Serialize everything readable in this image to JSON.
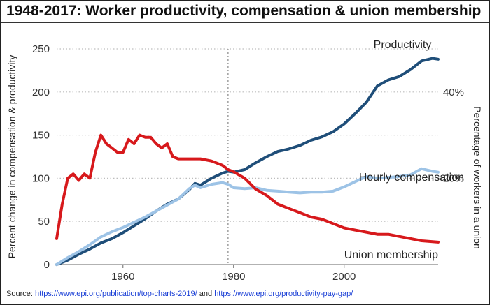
{
  "title": "1948-2017: Worker productivity, compensation & union membership",
  "source": {
    "prefix": "Source: ",
    "link1": "https://www.epi.org/publication/top-charts-2019/",
    "middle": " and ",
    "link2": "https://www.epi.org/productivity-pay-gap/"
  },
  "chart_data": {
    "type": "line",
    "title": "1948-2017: Worker productivity, compensation & union membership",
    "ylabel": "Percent change in compensation & productivity",
    "y2label": "Percentage of workers in a union",
    "xlim": [
      1948,
      2017
    ],
    "ylim": [
      0,
      250
    ],
    "y2lim": [
      0,
      50
    ],
    "x_ticks": [
      1960,
      1980,
      2000
    ],
    "x_tick_labels": [
      "1960",
      "1980",
      "2000"
    ],
    "y_ticks": [
      0,
      50,
      100,
      150,
      200,
      250
    ],
    "y_tick_labels": [
      "0",
      "50",
      "100",
      "150",
      "200",
      "250"
    ],
    "y2_ticks": [
      20,
      40
    ],
    "y2_tick_labels": [
      "20%",
      "40%"
    ],
    "reference_line_x": 1979,
    "grid": "horizontal dotted",
    "series": [
      {
        "name": "Productivity",
        "axis": "left",
        "color": "#1f4e79",
        "x": [
          1948,
          1950,
          1952,
          1954,
          1956,
          1958,
          1960,
          1962,
          1964,
          1966,
          1968,
          1970,
          1972,
          1973,
          1974,
          1976,
          1978,
          1979,
          1980,
          1982,
          1984,
          1986,
          1988,
          1990,
          1992,
          1994,
          1996,
          1998,
          2000,
          2002,
          2004,
          2006,
          2008,
          2010,
          2012,
          2014,
          2016,
          2017
        ],
        "values": [
          0,
          5,
          12,
          18,
          25,
          30,
          37,
          45,
          53,
          62,
          70,
          76,
          87,
          94,
          92,
          100,
          106,
          108,
          107,
          110,
          118,
          125,
          131,
          134,
          138,
          144,
          148,
          154,
          163,
          175,
          188,
          207,
          214,
          218,
          226,
          236,
          239,
          238
        ]
      },
      {
        "name": "Hourly compensation",
        "axis": "left",
        "color": "#9dc3e6",
        "x": [
          1948,
          1950,
          1952,
          1954,
          1956,
          1958,
          1960,
          1962,
          1964,
          1966,
          1968,
          1970,
          1972,
          1973,
          1974,
          1976,
          1978,
          1979,
          1980,
          1982,
          1984,
          1986,
          1988,
          1990,
          1992,
          1994,
          1996,
          1998,
          2000,
          2002,
          2004,
          2006,
          2008,
          2010,
          2012,
          2014,
          2016,
          2017
        ],
        "values": [
          0,
          8,
          15,
          23,
          32,
          38,
          43,
          49,
          55,
          62,
          69,
          76,
          88,
          92,
          89,
          93,
          95,
          93,
          89,
          88,
          89,
          86,
          85,
          84,
          83,
          84,
          84,
          85,
          90,
          96,
          102,
          100,
          101,
          102,
          104,
          111,
          108,
          107
        ]
      },
      {
        "name": "Union membership",
        "axis": "right",
        "color": "#d7191c",
        "x": [
          1948,
          1949,
          1950,
          1951,
          1952,
          1953,
          1954,
          1955,
          1956,
          1957,
          1958,
          1959,
          1960,
          1961,
          1962,
          1963,
          1964,
          1965,
          1966,
          1967,
          1968,
          1969,
          1970,
          1972,
          1974,
          1976,
          1978,
          1979,
          1980,
          1982,
          1984,
          1986,
          1988,
          1990,
          1992,
          1994,
          1996,
          1998,
          2000,
          2002,
          2004,
          2006,
          2008,
          2010,
          2012,
          2014,
          2016,
          2017
        ],
        "values": [
          6,
          14,
          20,
          21,
          19.5,
          21,
          20,
          26,
          30,
          28,
          27,
          26,
          26,
          29,
          28,
          30,
          29.5,
          29.5,
          28,
          27,
          28,
          25,
          24.5,
          24.5,
          24.5,
          24,
          23,
          22,
          21.5,
          20,
          17.5,
          16,
          14,
          13,
          12,
          11,
          10.5,
          9.5,
          8.5,
          8,
          7.5,
          7,
          7,
          6.5,
          6,
          5.5,
          5.3,
          5.2
        ]
      }
    ],
    "annotations": [
      {
        "text": "Productivity",
        "series": "Productivity"
      },
      {
        "text": "Hourly compensation",
        "series": "Hourly compensation"
      },
      {
        "text": "Union membership",
        "series": "Union membership"
      }
    ]
  }
}
